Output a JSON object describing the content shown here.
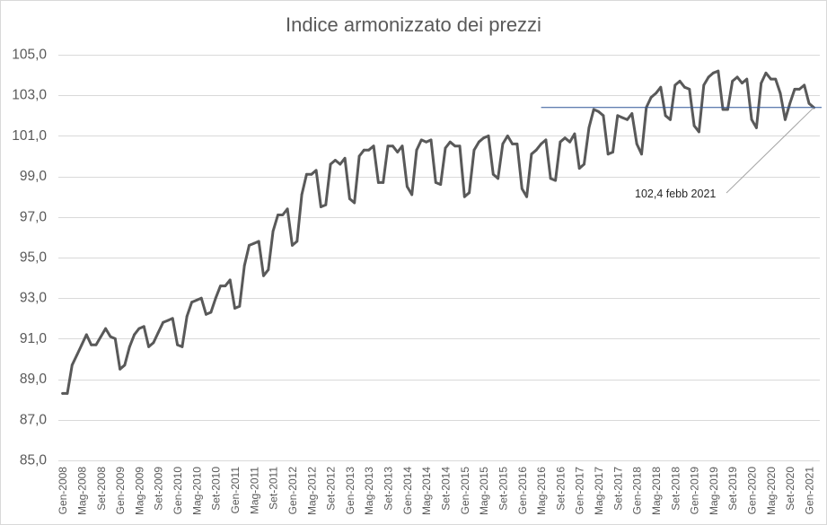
{
  "chart_data": {
    "type": "line",
    "title": "Indice armonizzato dei prezzi",
    "x": [
      "Gen-2008",
      "",
      "",
      "",
      "Mag-2008",
      "",
      "",
      "",
      "Set-2008",
      "",
      "",
      "",
      "Gen-2009",
      "",
      "",
      "",
      "Mag-2009",
      "",
      "",
      "",
      "Set-2009",
      "",
      "",
      "",
      "Gen-2010",
      "",
      "",
      "",
      "Mag-2010",
      "",
      "",
      "",
      "Set-2010",
      "",
      "",
      "",
      "Gen-2011",
      "",
      "",
      "",
      "Mag-2011",
      "",
      "",
      "",
      "Set-2011",
      "",
      "",
      "",
      "Gen-2012",
      "",
      "",
      "",
      "Mag-2012",
      "",
      "",
      "",
      "Set-2012",
      "",
      "",
      "",
      "Gen-2013",
      "",
      "",
      "",
      "Mag-2013",
      "",
      "",
      "",
      "Set-2013",
      "",
      "",
      "",
      "Gen-2014",
      "",
      "",
      "",
      "Mag-2014",
      "",
      "",
      "",
      "Set-2014",
      "",
      "",
      "",
      "Gen-2015",
      "",
      "",
      "",
      "Mag-2015",
      "",
      "",
      "",
      "Set-2015",
      "",
      "",
      "",
      "Gen-2016",
      "",
      "",
      "",
      "Mag-2016",
      "",
      "",
      "",
      "Set-2016",
      "",
      "",
      "",
      "Gen-2017",
      "",
      "",
      "",
      "Mag-2017",
      "",
      "",
      "",
      "Set-2017",
      "",
      "",
      "",
      "Gen-2018",
      "",
      "",
      "",
      "Mag-2018",
      "",
      "",
      "",
      "Set-2018",
      "",
      "",
      "",
      "Gen-2019",
      "",
      "",
      "",
      "Mag-2019",
      "",
      "",
      "",
      "Set-2019",
      "",
      "",
      "",
      "Gen-2020",
      "",
      "",
      "",
      "Mag-2020",
      "",
      "",
      "",
      "Set-2020",
      "",
      "",
      "",
      "Gen-2021",
      ""
    ],
    "series": [
      {
        "color": "#595959",
        "values": [
          88.3,
          88.3,
          89.7,
          90.2,
          90.7,
          91.2,
          90.7,
          90.7,
          91.1,
          91.5,
          91.1,
          91.0,
          89.5,
          89.7,
          90.6,
          91.2,
          91.5,
          91.6,
          90.6,
          90.8,
          91.3,
          91.8,
          91.9,
          92.0,
          90.7,
          90.6,
          92.1,
          92.8,
          92.9,
          93.0,
          92.2,
          92.3,
          93.0,
          93.6,
          93.6,
          93.9,
          92.5,
          92.6,
          94.6,
          95.6,
          95.7,
          95.8,
          94.1,
          94.4,
          96.3,
          97.1,
          97.1,
          97.4,
          95.6,
          95.8,
          98.1,
          99.1,
          99.1,
          99.3,
          97.5,
          97.6,
          99.6,
          99.8,
          99.6,
          99.9,
          97.9,
          97.7,
          100.0,
          100.3,
          100.3,
          100.5,
          98.7,
          98.7,
          100.5,
          100.5,
          100.2,
          100.5,
          98.5,
          98.1,
          100.3,
          100.8,
          100.7,
          100.8,
          98.7,
          98.6,
          100.4,
          100.7,
          100.5,
          100.5,
          98.0,
          98.2,
          100.3,
          100.7,
          100.9,
          101.0,
          99.1,
          98.9,
          100.6,
          101.0,
          100.6,
          100.6,
          98.4,
          98.0,
          100.1,
          100.3,
          100.6,
          100.8,
          98.9,
          98.8,
          100.7,
          100.9,
          100.7,
          101.1,
          99.4,
          99.6,
          101.4,
          102.3,
          102.2,
          102.0,
          100.1,
          100.2,
          102.0,
          101.9,
          101.8,
          102.1,
          100.6,
          100.1,
          102.4,
          102.9,
          103.1,
          103.4,
          102.0,
          101.8,
          103.5,
          103.7,
          103.4,
          103.3,
          101.5,
          101.2,
          103.5,
          103.9,
          104.1,
          104.2,
          102.3,
          102.3,
          103.7,
          103.9,
          103.6,
          103.8,
          101.8,
          101.4,
          103.6,
          104.1,
          103.8,
          103.8,
          103.1,
          101.8,
          102.6,
          103.3,
          103.3,
          103.5,
          102.6,
          102.4
        ]
      }
    ],
    "ylim": [
      85,
      105
    ],
    "y_ticks": [
      85,
      87,
      89,
      91,
      93,
      95,
      97,
      99,
      101,
      103,
      105
    ],
    "y_tick_labels": [
      "85,0",
      "87,0",
      "89,0",
      "91,0",
      "93,0",
      "95,0",
      "97,0",
      "99,0",
      "101,0",
      "103,0",
      "105,0"
    ],
    "grid": true,
    "legend": "none",
    "reference_line": {
      "y": 102.4,
      "color": "#2f5597"
    },
    "annotations": [
      {
        "text": "102,4 febb 2021",
        "y": 102.4
      }
    ],
    "colors": {
      "grid": "#d9d9d9",
      "leader_line": "#a6a6a6",
      "border": "#d9d9d9"
    }
  }
}
